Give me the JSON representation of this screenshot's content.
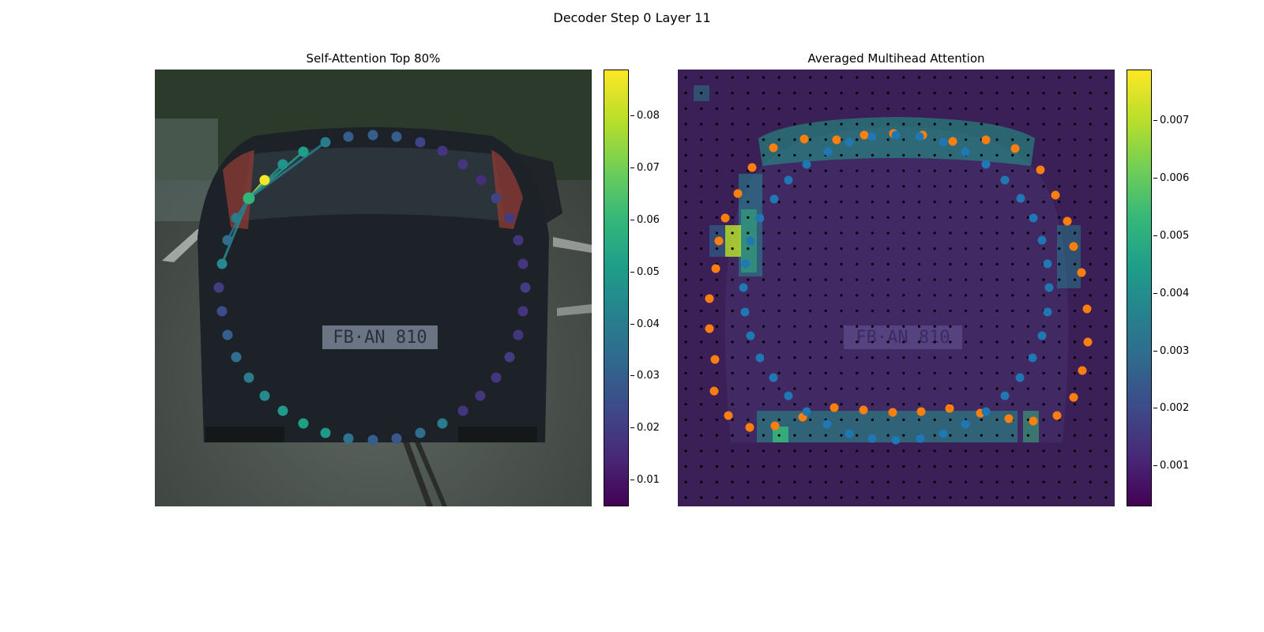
{
  "suptitle": "Decoder Step 0 Layer 11",
  "chart_data": [
    {
      "type": "scatter",
      "title": "Self-Attention Top 80%",
      "background": "photograph: rear view of a dark hatchback on a city street, license plate \"FB·AN 810\"",
      "colormap": "viridis",
      "colorbar": {
        "ticks": [
          "0.01",
          "0.02",
          "0.03",
          "0.04",
          "0.05",
          "0.06",
          "0.07",
          "0.08"
        ],
        "min": 0.005,
        "max": 0.089
      },
      "highlighted_point": 4,
      "points": [
        {
          "x": 277,
          "y": 364,
          "v": 0.02
        },
        {
          "x": 281,
          "y": 334,
          "v": 0.045
        },
        {
          "x": 288,
          "y": 304,
          "v": 0.035
        },
        {
          "x": 299,
          "y": 276,
          "v": 0.04
        },
        {
          "x": 315,
          "y": 251,
          "v": 0.06
        },
        {
          "x": 335,
          "y": 228,
          "v": 0.088
        },
        {
          "x": 358,
          "y": 208,
          "v": 0.048
        },
        {
          "x": 384,
          "y": 192,
          "v": 0.052
        },
        {
          "x": 412,
          "y": 180,
          "v": 0.04
        },
        {
          "x": 441,
          "y": 173,
          "v": 0.03
        },
        {
          "x": 472,
          "y": 171,
          "v": 0.03
        },
        {
          "x": 502,
          "y": 173,
          "v": 0.03
        },
        {
          "x": 532,
          "y": 180,
          "v": 0.022
        },
        {
          "x": 560,
          "y": 191,
          "v": 0.018
        },
        {
          "x": 586,
          "y": 208,
          "v": 0.018
        },
        {
          "x": 609,
          "y": 228,
          "v": 0.016
        },
        {
          "x": 628,
          "y": 251,
          "v": 0.022
        },
        {
          "x": 645,
          "y": 276,
          "v": 0.02
        },
        {
          "x": 656,
          "y": 304,
          "v": 0.018
        },
        {
          "x": 662,
          "y": 334,
          "v": 0.018
        },
        {
          "x": 665,
          "y": 364,
          "v": 0.02
        },
        {
          "x": 662,
          "y": 394,
          "v": 0.018
        },
        {
          "x": 656,
          "y": 424,
          "v": 0.018
        },
        {
          "x": 645,
          "y": 452,
          "v": 0.02
        },
        {
          "x": 628,
          "y": 478,
          "v": 0.018
        },
        {
          "x": 608,
          "y": 501,
          "v": 0.018
        },
        {
          "x": 586,
          "y": 520,
          "v": 0.018
        },
        {
          "x": 560,
          "y": 536,
          "v": 0.04
        },
        {
          "x": 532,
          "y": 548,
          "v": 0.035
        },
        {
          "x": 502,
          "y": 555,
          "v": 0.028
        },
        {
          "x": 472,
          "y": 557,
          "v": 0.03
        },
        {
          "x": 441,
          "y": 555,
          "v": 0.038
        },
        {
          "x": 412,
          "y": 548,
          "v": 0.05
        },
        {
          "x": 384,
          "y": 536,
          "v": 0.052
        },
        {
          "x": 358,
          "y": 520,
          "v": 0.05
        },
        {
          "x": 335,
          "y": 501,
          "v": 0.045
        },
        {
          "x": 315,
          "y": 478,
          "v": 0.04
        },
        {
          "x": 299,
          "y": 452,
          "v": 0.035
        },
        {
          "x": 288,
          "y": 424,
          "v": 0.03
        },
        {
          "x": 281,
          "y": 394,
          "v": 0.025
        }
      ]
    },
    {
      "type": "heatmap",
      "title": "Averaged Multihead Attention",
      "background": "photograph of the same car, overlaid with an attention heatmap and a grid of small black dots",
      "colormap": "viridis",
      "colorbar": {
        "ticks": [
          "0.001",
          "0.002",
          "0.003",
          "0.004",
          "0.005",
          "0.006",
          "0.007"
        ],
        "min": 0.0003,
        "max": 0.0079
      },
      "colors": {
        "orange_series": "#ff7f0e",
        "blue_series": "#1f77b4",
        "grid_dots": "#000000"
      },
      "series": [
        {
          "points": [
            {
              "x": 910,
              "y": 305
            },
            {
              "x": 918,
              "y": 276
            },
            {
              "x": 934,
              "y": 245
            },
            {
              "x": 952,
              "y": 212
            },
            {
              "x": 979,
              "y": 187
            },
            {
              "x": 1018,
              "y": 176
            },
            {
              "x": 1059,
              "y": 177
            },
            {
              "x": 1094,
              "y": 171
            },
            {
              "x": 1131,
              "y": 169
            },
            {
              "x": 1168,
              "y": 171
            },
            {
              "x": 1206,
              "y": 179
            },
            {
              "x": 1248,
              "y": 177
            },
            {
              "x": 1285,
              "y": 188
            },
            {
              "x": 1317,
              "y": 215
            },
            {
              "x": 1336,
              "y": 247
            },
            {
              "x": 1351,
              "y": 280
            },
            {
              "x": 1359,
              "y": 312
            },
            {
              "x": 1369,
              "y": 345
            },
            {
              "x": 1376,
              "y": 391
            },
            {
              "x": 1377,
              "y": 433
            },
            {
              "x": 1370,
              "y": 469
            },
            {
              "x": 1359,
              "y": 503
            },
            {
              "x": 1338,
              "y": 526
            },
            {
              "x": 1308,
              "y": 533
            },
            {
              "x": 1277,
              "y": 530
            },
            {
              "x": 1241,
              "y": 523
            },
            {
              "x": 1202,
              "y": 517
            },
            {
              "x": 1166,
              "y": 521
            },
            {
              "x": 1130,
              "y": 522
            },
            {
              "x": 1093,
              "y": 519
            },
            {
              "x": 1056,
              "y": 516
            },
            {
              "x": 1016,
              "y": 528
            },
            {
              "x": 981,
              "y": 539
            },
            {
              "x": 949,
              "y": 541
            },
            {
              "x": 922,
              "y": 526
            },
            {
              "x": 904,
              "y": 495
            },
            {
              "x": 905,
              "y": 455
            },
            {
              "x": 898,
              "y": 416
            },
            {
              "x": 898,
              "y": 378
            },
            {
              "x": 906,
              "y": 340
            }
          ]
        },
        {
          "points": [
            {
              "x": 944,
              "y": 334
            },
            {
              "x": 950,
              "y": 305
            },
            {
              "x": 962,
              "y": 276
            },
            {
              "x": 980,
              "y": 252
            },
            {
              "x": 998,
              "y": 228
            },
            {
              "x": 1021,
              "y": 208
            },
            {
              "x": 1048,
              "y": 192
            },
            {
              "x": 1075,
              "y": 180
            },
            {
              "x": 1104,
              "y": 173
            },
            {
              "x": 1134,
              "y": 171
            },
            {
              "x": 1164,
              "y": 173
            },
            {
              "x": 1194,
              "y": 180
            },
            {
              "x": 1222,
              "y": 192
            },
            {
              "x": 1248,
              "y": 208
            },
            {
              "x": 1272,
              "y": 228
            },
            {
              "x": 1292,
              "y": 251
            },
            {
              "x": 1308,
              "y": 276
            },
            {
              "x": 1319,
              "y": 304
            },
            {
              "x": 1326,
              "y": 334
            },
            {
              "x": 1328,
              "y": 364
            },
            {
              "x": 1326,
              "y": 395
            },
            {
              "x": 1319,
              "y": 425
            },
            {
              "x": 1307,
              "y": 453
            },
            {
              "x": 1291,
              "y": 478
            },
            {
              "x": 1272,
              "y": 501
            },
            {
              "x": 1248,
              "y": 521
            },
            {
              "x": 1222,
              "y": 537
            },
            {
              "x": 1194,
              "y": 549
            },
            {
              "x": 1165,
              "y": 555
            },
            {
              "x": 1134,
              "y": 557
            },
            {
              "x": 1104,
              "y": 555
            },
            {
              "x": 1075,
              "y": 549
            },
            {
              "x": 1047,
              "y": 537
            },
            {
              "x": 1021,
              "y": 521
            },
            {
              "x": 998,
              "y": 501
            },
            {
              "x": 979,
              "y": 478
            },
            {
              "x": 962,
              "y": 453
            },
            {
              "x": 950,
              "y": 425
            },
            {
              "x": 943,
              "y": 395
            },
            {
              "x": 941,
              "y": 364
            }
          ]
        }
      ]
    }
  ]
}
